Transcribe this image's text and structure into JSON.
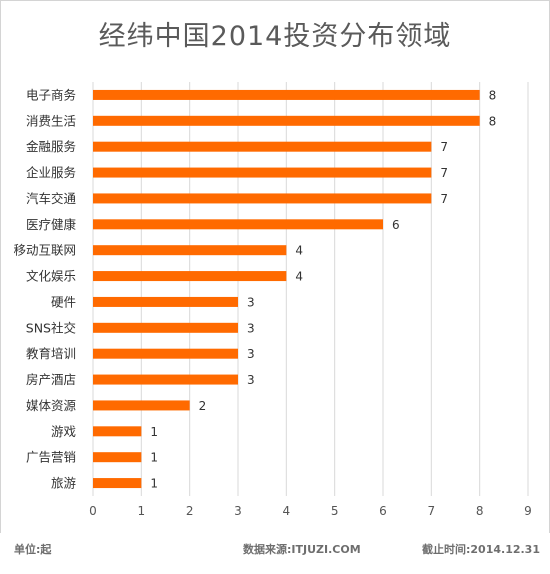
{
  "chart_data": {
    "type": "bar",
    "orientation": "horizontal",
    "title": "经纬中国2014投资分布领域",
    "categories": [
      "电子商务",
      "消费生活",
      "金融服务",
      "企业服务",
      "汽车交通",
      "医疗健康",
      "移动互联网",
      "文化娱乐",
      "硬件",
      "SNS社交",
      "教育培训",
      "房产酒店",
      "媒体资源",
      "游戏",
      "广告营销",
      "旅游"
    ],
    "values": [
      8,
      8,
      7,
      7,
      7,
      6,
      4,
      4,
      3,
      3,
      3,
      3,
      2,
      1,
      1,
      1
    ],
    "xticks": [
      "0",
      "1",
      "2",
      "3",
      "4",
      "5",
      "6",
      "7",
      "8",
      "9"
    ],
    "xlim": [
      0,
      9
    ],
    "data_labels": true,
    "grid": "vertical",
    "legend": "none",
    "bar_color": "#ff6a00"
  },
  "footer": {
    "unit": "单位:起",
    "source": "数据来源:ITJUZI.COM",
    "date": "截止时间:2014.12.31"
  }
}
